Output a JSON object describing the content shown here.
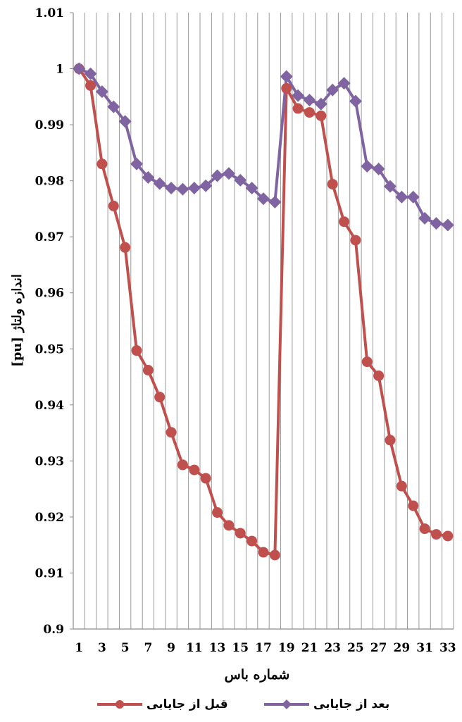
{
  "chart_data": {
    "type": "line",
    "xlabel": "شماره باس",
    "ylabel": "اندازه ولتاژ [pu]",
    "ylim": [
      0.9,
      1.01
    ],
    "y_ticks": [
      "0.9",
      "0.91",
      "0.92",
      "0.93",
      "0.94",
      "0.95",
      "0.96",
      "0.97",
      "0.98",
      "0.99",
      "1",
      "1.01"
    ],
    "x_tick_labels": [
      "1",
      "3",
      "5",
      "7",
      "9",
      "11",
      "13",
      "15",
      "17",
      "19",
      "21",
      "23",
      "25",
      "27",
      "29",
      "31",
      "33"
    ],
    "x": [
      1,
      2,
      3,
      4,
      5,
      6,
      7,
      8,
      9,
      10,
      11,
      12,
      13,
      14,
      15,
      16,
      17,
      18,
      19,
      20,
      21,
      22,
      23,
      24,
      25,
      26,
      27,
      28,
      29,
      30,
      31,
      32,
      33
    ],
    "grid": "vertical lines at every bus",
    "legend_position": "bottom",
    "series": [
      {
        "name": "بعد از جایابی",
        "color": "#8064A2",
        "marker": "diamond",
        "values": [
          1.0,
          0.9991,
          0.9959,
          0.9932,
          0.9906,
          0.983,
          0.9806,
          0.9795,
          0.9787,
          0.9785,
          0.9787,
          0.9791,
          0.9809,
          0.9813,
          0.9801,
          0.9787,
          0.9768,
          0.9762,
          0.9986,
          0.9952,
          0.9944,
          0.9937,
          0.9962,
          0.9974,
          0.9942,
          0.9826,
          0.9821,
          0.979,
          0.9771,
          0.9771,
          0.9733,
          0.9724,
          0.9721
        ]
      },
      {
        "name": "قبل از جایابی",
        "color": "#C0504D",
        "marker": "circle",
        "values": [
          1.0,
          0.997,
          0.983,
          0.9755,
          0.9681,
          0.9497,
          0.9462,
          0.9414,
          0.9351,
          0.9293,
          0.9284,
          0.9269,
          0.9208,
          0.9185,
          0.9171,
          0.9157,
          0.9137,
          0.9132,
          0.9965,
          0.9929,
          0.9922,
          0.9916,
          0.9794,
          0.9727,
          0.9694,
          0.9477,
          0.9452,
          0.9337,
          0.9255,
          0.922,
          0.9179,
          0.9169,
          0.9166
        ]
      }
    ]
  }
}
